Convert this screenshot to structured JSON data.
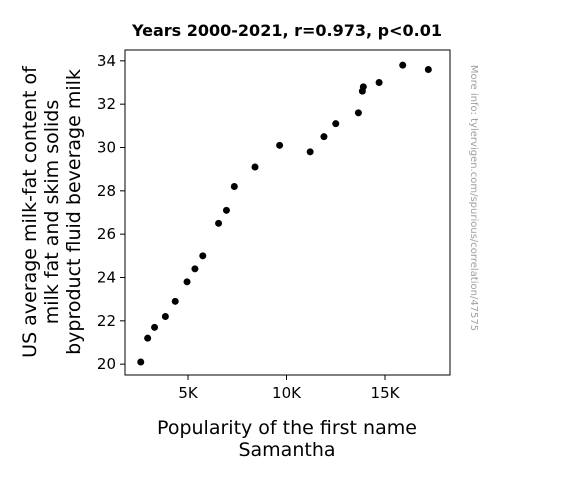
{
  "chart_data": {
    "type": "scatter",
    "title": "Years 2000-2021, r=0.973, p<0.01",
    "xlabel_lines": [
      "Popularity of the first name",
      "Samantha"
    ],
    "ylabel_lines": [
      "US average milk-fat content of",
      "milk fat and skim solids",
      "byproduct fluid beverage milk"
    ],
    "watermark": "More info: tylervigen.com/spurious/correlation/47575",
    "xlim": [
      1800,
      18300
    ],
    "ylim": [
      19.5,
      34.5
    ],
    "xticks": [
      {
        "value": 5000,
        "label": "5K"
      },
      {
        "value": 10000,
        "label": "10K"
      },
      {
        "value": 15000,
        "label": "15K"
      }
    ],
    "yticks": [
      {
        "value": 20,
        "label": "20"
      },
      {
        "value": 22,
        "label": "22"
      },
      {
        "value": 24,
        "label": "24"
      },
      {
        "value": 26,
        "label": "26"
      },
      {
        "value": 28,
        "label": "28"
      },
      {
        "value": 30,
        "label": "30"
      },
      {
        "value": 32,
        "label": "32"
      },
      {
        "value": 34,
        "label": "34"
      }
    ],
    "grid": false,
    "point_color": "#000000",
    "points": [
      {
        "x": 17200,
        "y": 33.6
      },
      {
        "x": 15900,
        "y": 33.8
      },
      {
        "x": 14700,
        "y": 33.0
      },
      {
        "x": 13900,
        "y": 32.8
      },
      {
        "x": 13850,
        "y": 32.6
      },
      {
        "x": 13650,
        "y": 31.6
      },
      {
        "x": 12500,
        "y": 31.1
      },
      {
        "x": 11900,
        "y": 30.5
      },
      {
        "x": 11200,
        "y": 29.8
      },
      {
        "x": 9650,
        "y": 30.1
      },
      {
        "x": 8400,
        "y": 29.1
      },
      {
        "x": 7350,
        "y": 28.2
      },
      {
        "x": 6950,
        "y": 27.1
      },
      {
        "x": 6550,
        "y": 26.5
      },
      {
        "x": 5750,
        "y": 25.0
      },
      {
        "x": 5350,
        "y": 24.4
      },
      {
        "x": 4950,
        "y": 23.8
      },
      {
        "x": 4350,
        "y": 22.9
      },
      {
        "x": 3850,
        "y": 22.2
      },
      {
        "x": 3300,
        "y": 21.7
      },
      {
        "x": 2950,
        "y": 21.2
      },
      {
        "x": 2600,
        "y": 20.1
      }
    ]
  }
}
